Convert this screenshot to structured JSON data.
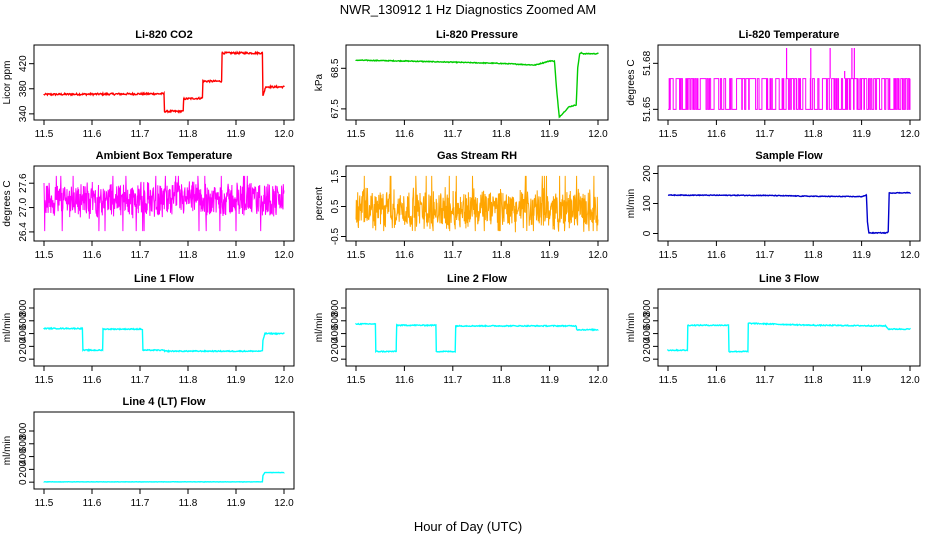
{
  "figure": {
    "title": "NWR_130912  1 Hz Diagnostics Zoomed AM",
    "xlabel": "Hour of Day (UTC)"
  },
  "chart_data": [
    {
      "type": "line",
      "title": "Li-820 CO2",
      "ylabel": "Licor ppm",
      "color": "#ff0000",
      "xlim": [
        11.5,
        12.0
      ],
      "ylim": [
        335,
        445
      ],
      "xticks": [
        11.5,
        11.6,
        11.7,
        11.8,
        11.9,
        12.0
      ],
      "xtick_labels": [
        "11.5",
        "11.6",
        "11.7",
        "11.8",
        "11.9",
        "12.0"
      ],
      "yticks": [
        340,
        380,
        420
      ],
      "ytick_labels": [
        "340",
        "380",
        "420"
      ],
      "noise": 1.5,
      "x": [
        11.5,
        11.75,
        11.751,
        11.79,
        11.791,
        11.83,
        11.831,
        11.87,
        11.871,
        11.955,
        11.956,
        11.962,
        11.963,
        12.0
      ],
      "y": [
        371,
        372,
        344,
        344,
        364,
        365,
        392,
        392,
        437,
        437,
        369,
        383,
        383,
        383
      ]
    },
    {
      "type": "line",
      "title": "Li-820 Pressure",
      "ylabel": "kPa",
      "color": "#00cc00",
      "xlim": [
        11.5,
        12.0
      ],
      "ylim": [
        67.3,
        69.0
      ],
      "xticks": [
        11.5,
        11.6,
        11.7,
        11.8,
        11.9,
        12.0
      ],
      "xtick_labels": [
        "11.5",
        "11.6",
        "11.7",
        "11.8",
        "11.9",
        "12.0"
      ],
      "yticks": [
        67.5,
        68.5
      ],
      "ytick_labels": [
        "67.5",
        "68.5"
      ],
      "noise": 0.01,
      "x": [
        11.5,
        11.6,
        11.7,
        11.8,
        11.87,
        11.9,
        11.91,
        11.915,
        11.92,
        11.94,
        11.955,
        11.958,
        11.962,
        11.965,
        11.97,
        12.0
      ],
      "y": [
        68.7,
        68.68,
        68.65,
        68.62,
        68.58,
        68.68,
        68.68,
        67.9,
        67.3,
        67.55,
        67.6,
        68.5,
        68.85,
        68.88,
        68.86,
        68.86
      ]
    },
    {
      "type": "line",
      "title": "Li-820 Temperature",
      "ylabel": "degrees C",
      "color": "#ff00ff",
      "xlim": [
        11.5,
        12.0
      ],
      "ylim": [
        51.645,
        51.69
      ],
      "xticks": [
        11.5,
        11.6,
        11.7,
        11.8,
        11.9,
        12.0
      ],
      "xtick_labels": [
        "11.5",
        "11.6",
        "11.7",
        "11.8",
        "11.9",
        "12.0"
      ],
      "yticks": [
        51.65,
        51.68
      ],
      "ytick_labels": [
        "51.65",
        "51.68"
      ],
      "levels": [
        51.65,
        51.67
      ],
      "spikes": [
        {
          "x": 11.745,
          "y": 51.69
        },
        {
          "x": 11.795,
          "y": 51.69
        },
        {
          "x": 11.835,
          "y": 51.69
        },
        {
          "x": 11.88,
          "y": 51.69
        },
        {
          "x": 11.885,
          "y": 51.69
        },
        {
          "x": 11.865,
          "y": 51.675
        }
      ]
    },
    {
      "type": "line",
      "title": "Ambient Box Temperature",
      "ylabel": "degrees C",
      "color": "#ff00ff",
      "xlim": [
        11.5,
        12.0
      ],
      "ylim": [
        26.25,
        27.95
      ],
      "xticks": [
        11.5,
        11.6,
        11.7,
        11.8,
        11.9,
        12.0
      ],
      "xtick_labels": [
        "11.5",
        "11.6",
        "11.7",
        "11.8",
        "11.9",
        "12.0"
      ],
      "yticks": [
        26.4,
        27.0,
        27.6
      ],
      "ytick_labels": [
        "26.4",
        "27.0",
        "27.6"
      ],
      "center": 27.15,
      "band": [
        26.75,
        27.65
      ]
    },
    {
      "type": "line",
      "title": "Gas Stream RH",
      "ylabel": "percent",
      "color": "#ffa500",
      "xlim": [
        11.5,
        12.0
      ],
      "ylim": [
        -0.55,
        1.75
      ],
      "xticks": [
        11.5,
        11.6,
        11.7,
        11.8,
        11.9,
        12.0
      ],
      "xtick_labels": [
        "11.5",
        "11.6",
        "11.7",
        "11.8",
        "11.9",
        "12.0"
      ],
      "yticks": [
        -0.5,
        0.5,
        1.5
      ],
      "ytick_labels": [
        "-0.5",
        "0.5",
        "1.5"
      ],
      "center": 0.35,
      "band": [
        -0.3,
        1.1
      ]
    },
    {
      "type": "line",
      "title": "Sample Flow",
      "ylabel": "ml/min",
      "color": "#0000cc",
      "xlim": [
        11.5,
        12.0
      ],
      "ylim": [
        -15,
        215
      ],
      "xticks": [
        11.5,
        11.6,
        11.7,
        11.8,
        11.9,
        12.0
      ],
      "xtick_labels": [
        "11.5",
        "11.6",
        "11.7",
        "11.8",
        "11.9",
        "12.0"
      ],
      "yticks": [
        0,
        100,
        200
      ],
      "ytick_labels": [
        "0",
        "100",
        "200"
      ],
      "noise": 1.2,
      "x": [
        11.5,
        11.7,
        11.8,
        11.9,
        11.91,
        11.912,
        11.915,
        11.95,
        11.955,
        11.957,
        12.0
      ],
      "y": [
        128,
        127,
        124,
        123,
        128,
        40,
        2,
        2,
        5,
        135,
        136
      ]
    },
    {
      "type": "line",
      "title": "Line 1 Flow",
      "ylabel": "ml/min",
      "color": "#00ffff",
      "xlim": [
        11.5,
        12.0
      ],
      "ylim": [
        -60,
        1050
      ],
      "xticks": [
        11.5,
        11.6,
        11.7,
        11.8,
        11.9,
        12.0
      ],
      "xtick_labels": [
        "11.5",
        "11.6",
        "11.7",
        "11.8",
        "11.9",
        "12.0"
      ],
      "yticks": [
        0,
        200,
        400,
        600,
        800
      ],
      "ytick_labels": [
        "0",
        "200",
        "400",
        "600",
        "800"
      ],
      "noise": 8,
      "x": [
        11.5,
        11.58,
        11.581,
        11.622,
        11.623,
        11.705,
        11.706,
        11.75,
        11.751,
        11.955,
        11.956,
        11.96,
        12.0
      ],
      "y": [
        480,
        480,
        140,
        140,
        470,
        470,
        140,
        140,
        125,
        125,
        290,
        400,
        400
      ]
    },
    {
      "type": "line",
      "title": "Line 2 Flow",
      "ylabel": "ml/min",
      "color": "#00ffff",
      "xlim": [
        11.5,
        12.0
      ],
      "ylim": [
        -60,
        1050
      ],
      "xticks": [
        11.5,
        11.6,
        11.7,
        11.8,
        11.9,
        12.0
      ],
      "xtick_labels": [
        "11.5",
        "11.6",
        "11.7",
        "11.8",
        "11.9",
        "12.0"
      ],
      "yticks": [
        0,
        200,
        400,
        600,
        800
      ],
      "ytick_labels": [
        "0",
        "200",
        "400",
        "600",
        "800"
      ],
      "noise": 8,
      "x": [
        11.5,
        11.54,
        11.541,
        11.583,
        11.584,
        11.665,
        11.666,
        11.705,
        11.706,
        11.955,
        11.956,
        12.0
      ],
      "y": [
        550,
        550,
        120,
        120,
        530,
        530,
        120,
        120,
        520,
        520,
        460,
        460
      ]
    },
    {
      "type": "line",
      "title": "Line 3 Flow",
      "ylabel": "ml/min",
      "color": "#00ffff",
      "xlim": [
        11.5,
        12.0
      ],
      "ylim": [
        -60,
        1050
      ],
      "xticks": [
        11.5,
        11.6,
        11.7,
        11.8,
        11.9,
        12.0
      ],
      "xtick_labels": [
        "11.5",
        "11.6",
        "11.7",
        "11.8",
        "11.9",
        "12.0"
      ],
      "yticks": [
        0,
        200,
        400,
        600,
        800
      ],
      "ytick_labels": [
        "0",
        "200",
        "400",
        "600",
        "800"
      ],
      "noise": 8,
      "x": [
        11.5,
        11.54,
        11.541,
        11.625,
        11.626,
        11.665,
        11.666,
        11.8,
        11.95,
        11.955,
        12.0
      ],
      "y": [
        140,
        140,
        530,
        530,
        120,
        120,
        560,
        530,
        520,
        470,
        470
      ]
    },
    {
      "type": "line",
      "title": "Line 4 (LT) Flow",
      "ylabel": "ml/min",
      "color": "#00ffff",
      "xlim": [
        11.5,
        12.0
      ],
      "ylim": [
        -60,
        1050
      ],
      "xticks": [
        11.5,
        11.6,
        11.7,
        11.8,
        11.9,
        12.0
      ],
      "xtick_labels": [
        "11.5",
        "11.6",
        "11.7",
        "11.8",
        "11.9",
        "12.0"
      ],
      "yticks": [
        0,
        200,
        400,
        600,
        800
      ],
      "ytick_labels": [
        "0",
        "200",
        "400",
        "600",
        "800"
      ],
      "noise": 2,
      "x": [
        11.5,
        11.955,
        11.956,
        11.96,
        12.0
      ],
      "y": [
        5,
        5,
        100,
        150,
        150
      ]
    }
  ]
}
